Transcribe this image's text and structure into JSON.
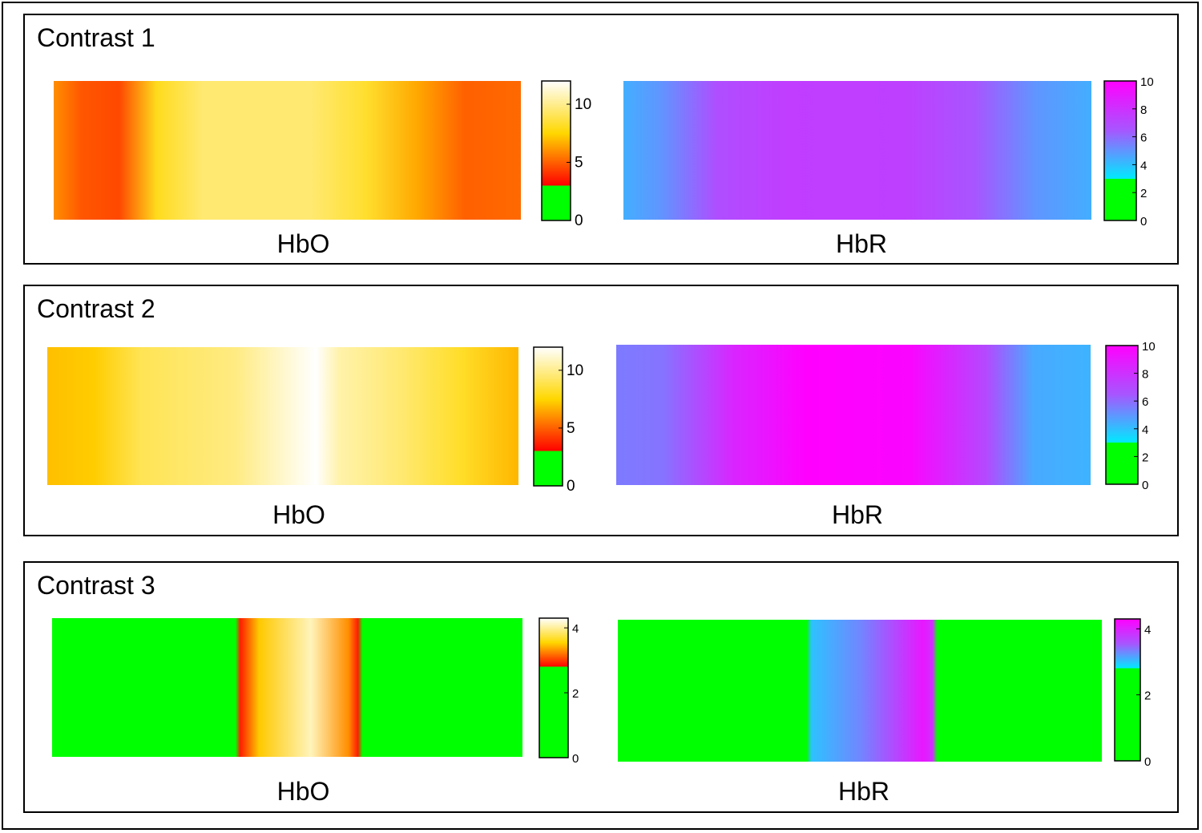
{
  "chart_data": {
    "type": "heatmap",
    "colors": {
      "hbo_scale": [
        "#00ff00",
        "#ff0000",
        "#ffd700",
        "#ffffff"
      ],
      "hbr_scale": [
        "#00ff00",
        "#00eaff",
        "#a855ff",
        "#ff00ff"
      ],
      "frame": "#000000"
    },
    "panels": [
      {
        "title": "Contrast 1",
        "maps": [
          {
            "label": "HbO",
            "colormap": "hot",
            "colorbar": {
              "ticks": [
                "10",
                "5",
                "0"
              ],
              "range": [
                0,
                12
              ],
              "threshold": 3
            },
            "profile": [
              {
                "x": 0.0,
                "v": 6.0
              },
              {
                "x": 0.06,
                "v": 4.8
              },
              {
                "x": 0.14,
                "v": 4.5
              },
              {
                "x": 0.22,
                "v": 8.0
              },
              {
                "x": 0.32,
                "v": 9.5
              },
              {
                "x": 0.55,
                "v": 9.5
              },
              {
                "x": 0.67,
                "v": 8.3
              },
              {
                "x": 0.78,
                "v": 6.5
              },
              {
                "x": 0.88,
                "v": 5.0
              },
              {
                "x": 1.0,
                "v": 5.2
              }
            ]
          },
          {
            "label": "HbR",
            "colormap": "cool",
            "colorbar": {
              "ticks": [
                "10",
                "8",
                "6",
                "4",
                "2",
                "0"
              ],
              "range": [
                0,
                10
              ],
              "threshold": 3
            },
            "profile": [
              {
                "x": 0.0,
                "v": 4.4
              },
              {
                "x": 0.08,
                "v": 5.0
              },
              {
                "x": 0.2,
                "v": 6.8
              },
              {
                "x": 0.35,
                "v": 7.5
              },
              {
                "x": 0.6,
                "v": 7.4
              },
              {
                "x": 0.75,
                "v": 6.5
              },
              {
                "x": 0.88,
                "v": 5.0
              },
              {
                "x": 1.0,
                "v": 4.4
              }
            ]
          }
        ]
      },
      {
        "title": "Contrast 2",
        "maps": [
          {
            "label": "HbO",
            "colormap": "hot",
            "colorbar": {
              "ticks": [
                "10",
                "5",
                "0"
              ],
              "range": [
                0,
                12
              ],
              "threshold": 3
            },
            "profile": [
              {
                "x": 0.0,
                "v": 7.0
              },
              {
                "x": 0.1,
                "v": 7.3
              },
              {
                "x": 0.2,
                "v": 9.0
              },
              {
                "x": 0.4,
                "v": 9.8
              },
              {
                "x": 0.53,
                "v": 11.5
              },
              {
                "x": 0.57,
                "v": 12.0
              },
              {
                "x": 0.62,
                "v": 10.5
              },
              {
                "x": 0.75,
                "v": 9.5
              },
              {
                "x": 0.88,
                "v": 8.2
              },
              {
                "x": 1.0,
                "v": 6.8
              }
            ]
          },
          {
            "label": "HbR",
            "colormap": "cool",
            "colorbar": {
              "ticks": [
                "10",
                "8",
                "6",
                "4",
                "2",
                "0"
              ],
              "range": [
                0,
                10
              ],
              "threshold": 3
            },
            "profile": [
              {
                "x": 0.0,
                "v": 5.6
              },
              {
                "x": 0.1,
                "v": 5.8
              },
              {
                "x": 0.25,
                "v": 8.5
              },
              {
                "x": 0.4,
                "v": 10.0
              },
              {
                "x": 0.62,
                "v": 9.8
              },
              {
                "x": 0.78,
                "v": 7.0
              },
              {
                "x": 0.88,
                "v": 4.5
              },
              {
                "x": 1.0,
                "v": 4.3
              }
            ]
          }
        ]
      },
      {
        "title": "Contrast 3",
        "maps": [
          {
            "label": "HbO",
            "colormap": "hot",
            "colorbar": {
              "ticks": [
                "4",
                "2",
                "0"
              ],
              "range": [
                0,
                4.3
              ],
              "threshold": 2.8
            },
            "profile": [
              {
                "x": 0.0,
                "v": 0
              },
              {
                "x": 0.39,
                "v": 0
              },
              {
                "x": 0.4,
                "v": 2.9
              },
              {
                "x": 0.44,
                "v": 3.5
              },
              {
                "x": 0.55,
                "v": 4.1
              },
              {
                "x": 0.63,
                "v": 3.3
              },
              {
                "x": 0.65,
                "v": 2.9
              },
              {
                "x": 0.66,
                "v": 0
              },
              {
                "x": 1.0,
                "v": 0
              }
            ]
          },
          {
            "label": "HbR",
            "colormap": "cool",
            "colorbar": {
              "ticks": [
                "4",
                "2",
                "0"
              ],
              "range": [
                0,
                4.3
              ],
              "threshold": 2.8
            },
            "profile": [
              {
                "x": 0.0,
                "v": 0
              },
              {
                "x": 0.39,
                "v": 0
              },
              {
                "x": 0.4,
                "v": 3.0
              },
              {
                "x": 0.5,
                "v": 3.3
              },
              {
                "x": 0.63,
                "v": 4.1
              },
              {
                "x": 0.65,
                "v": 3.9
              },
              {
                "x": 0.66,
                "v": 0
              },
              {
                "x": 1.0,
                "v": 0
              }
            ]
          }
        ]
      }
    ]
  }
}
